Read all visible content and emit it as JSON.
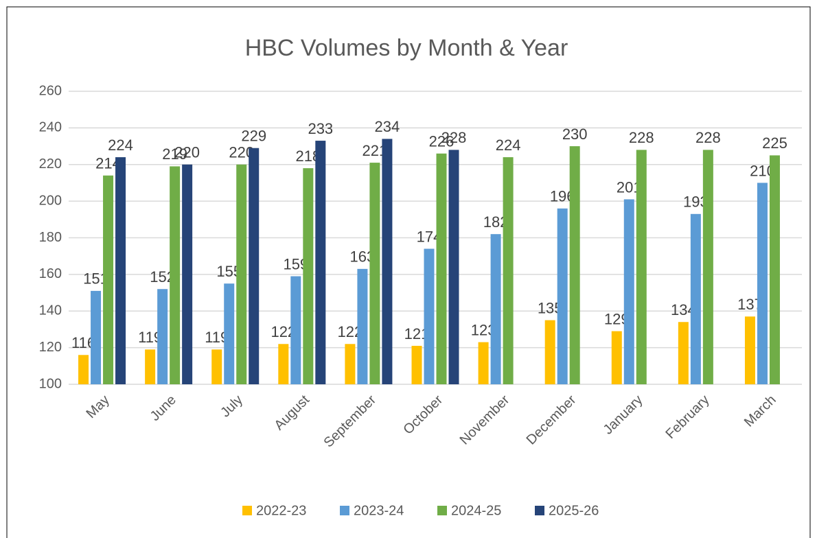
{
  "chart_data": {
    "type": "bar",
    "title": "HBC Volumes by Month & Year",
    "categories": [
      "May",
      "June",
      "July",
      "August",
      "September",
      "October",
      "November",
      "December",
      "January",
      "February",
      "March"
    ],
    "series": [
      {
        "name": "2022-23",
        "color": "#ffc000",
        "values": [
          116,
          119,
          119,
          122,
          122,
          121,
          123,
          135,
          129,
          134,
          137
        ]
      },
      {
        "name": "2023-24",
        "color": "#5b9bd5",
        "values": [
          151,
          152,
          155,
          159,
          163,
          174,
          182,
          196,
          201,
          193,
          210
        ]
      },
      {
        "name": "2024-25",
        "color": "#70ad47",
        "values": [
          214,
          219,
          220,
          218,
          221,
          226,
          224,
          230,
          228,
          228,
          225
        ]
      },
      {
        "name": "2025-26",
        "color": "#264478",
        "values": [
          224,
          220,
          229,
          233,
          234,
          228,
          null,
          null,
          null,
          null,
          null
        ]
      }
    ],
    "ylim": [
      100,
      260
    ],
    "yticks": [
      100,
      120,
      140,
      160,
      180,
      200,
      220,
      240,
      260
    ],
    "grid": true,
    "legend": "bottom"
  }
}
